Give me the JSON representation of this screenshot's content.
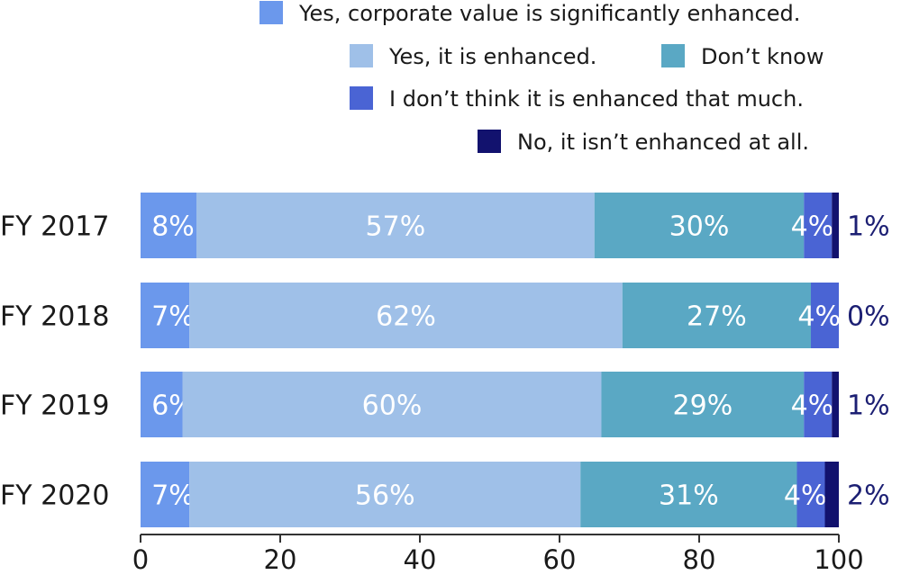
{
  "chart_data": {
    "type": "bar",
    "orientation": "horizontal",
    "stacked": true,
    "categories": [
      "FY 2017",
      "FY 2018",
      "FY 2019",
      "FY 2020"
    ],
    "series": [
      {
        "name": "Yes, corporate value is significantly enhanced.",
        "color": "#6b98ec",
        "values": [
          8,
          7,
          6,
          7
        ]
      },
      {
        "name": "Yes, it is enhanced.",
        "color": "#9fc0e8",
        "values": [
          57,
          62,
          60,
          56
        ]
      },
      {
        "name": "Don’t know",
        "color": "#5aa8c4",
        "values": [
          30,
          27,
          29,
          31
        ]
      },
      {
        "name": "I don’t think it is enhanced that much.",
        "color": "#4a64d4",
        "values": [
          4,
          4,
          4,
          4
        ]
      },
      {
        "name": "No, it isn’t enhanced at all.",
        "color": "#12126e",
        "values": [
          1,
          0,
          1,
          2
        ]
      }
    ],
    "data_labels": [
      [
        "8%",
        "57%",
        "30%",
        "4%",
        "1%"
      ],
      [
        "7%",
        "62%",
        "27%",
        "4%",
        "0%"
      ],
      [
        "6%",
        "60%",
        "29%",
        "4%",
        "1%"
      ],
      [
        "7%",
        "56%",
        "31%",
        "4%",
        "2%"
      ]
    ],
    "xlim": [
      0,
      100
    ],
    "xticks": [
      0,
      20,
      40,
      60,
      80,
      100
    ],
    "grid": false,
    "legend_position": "top-right"
  }
}
